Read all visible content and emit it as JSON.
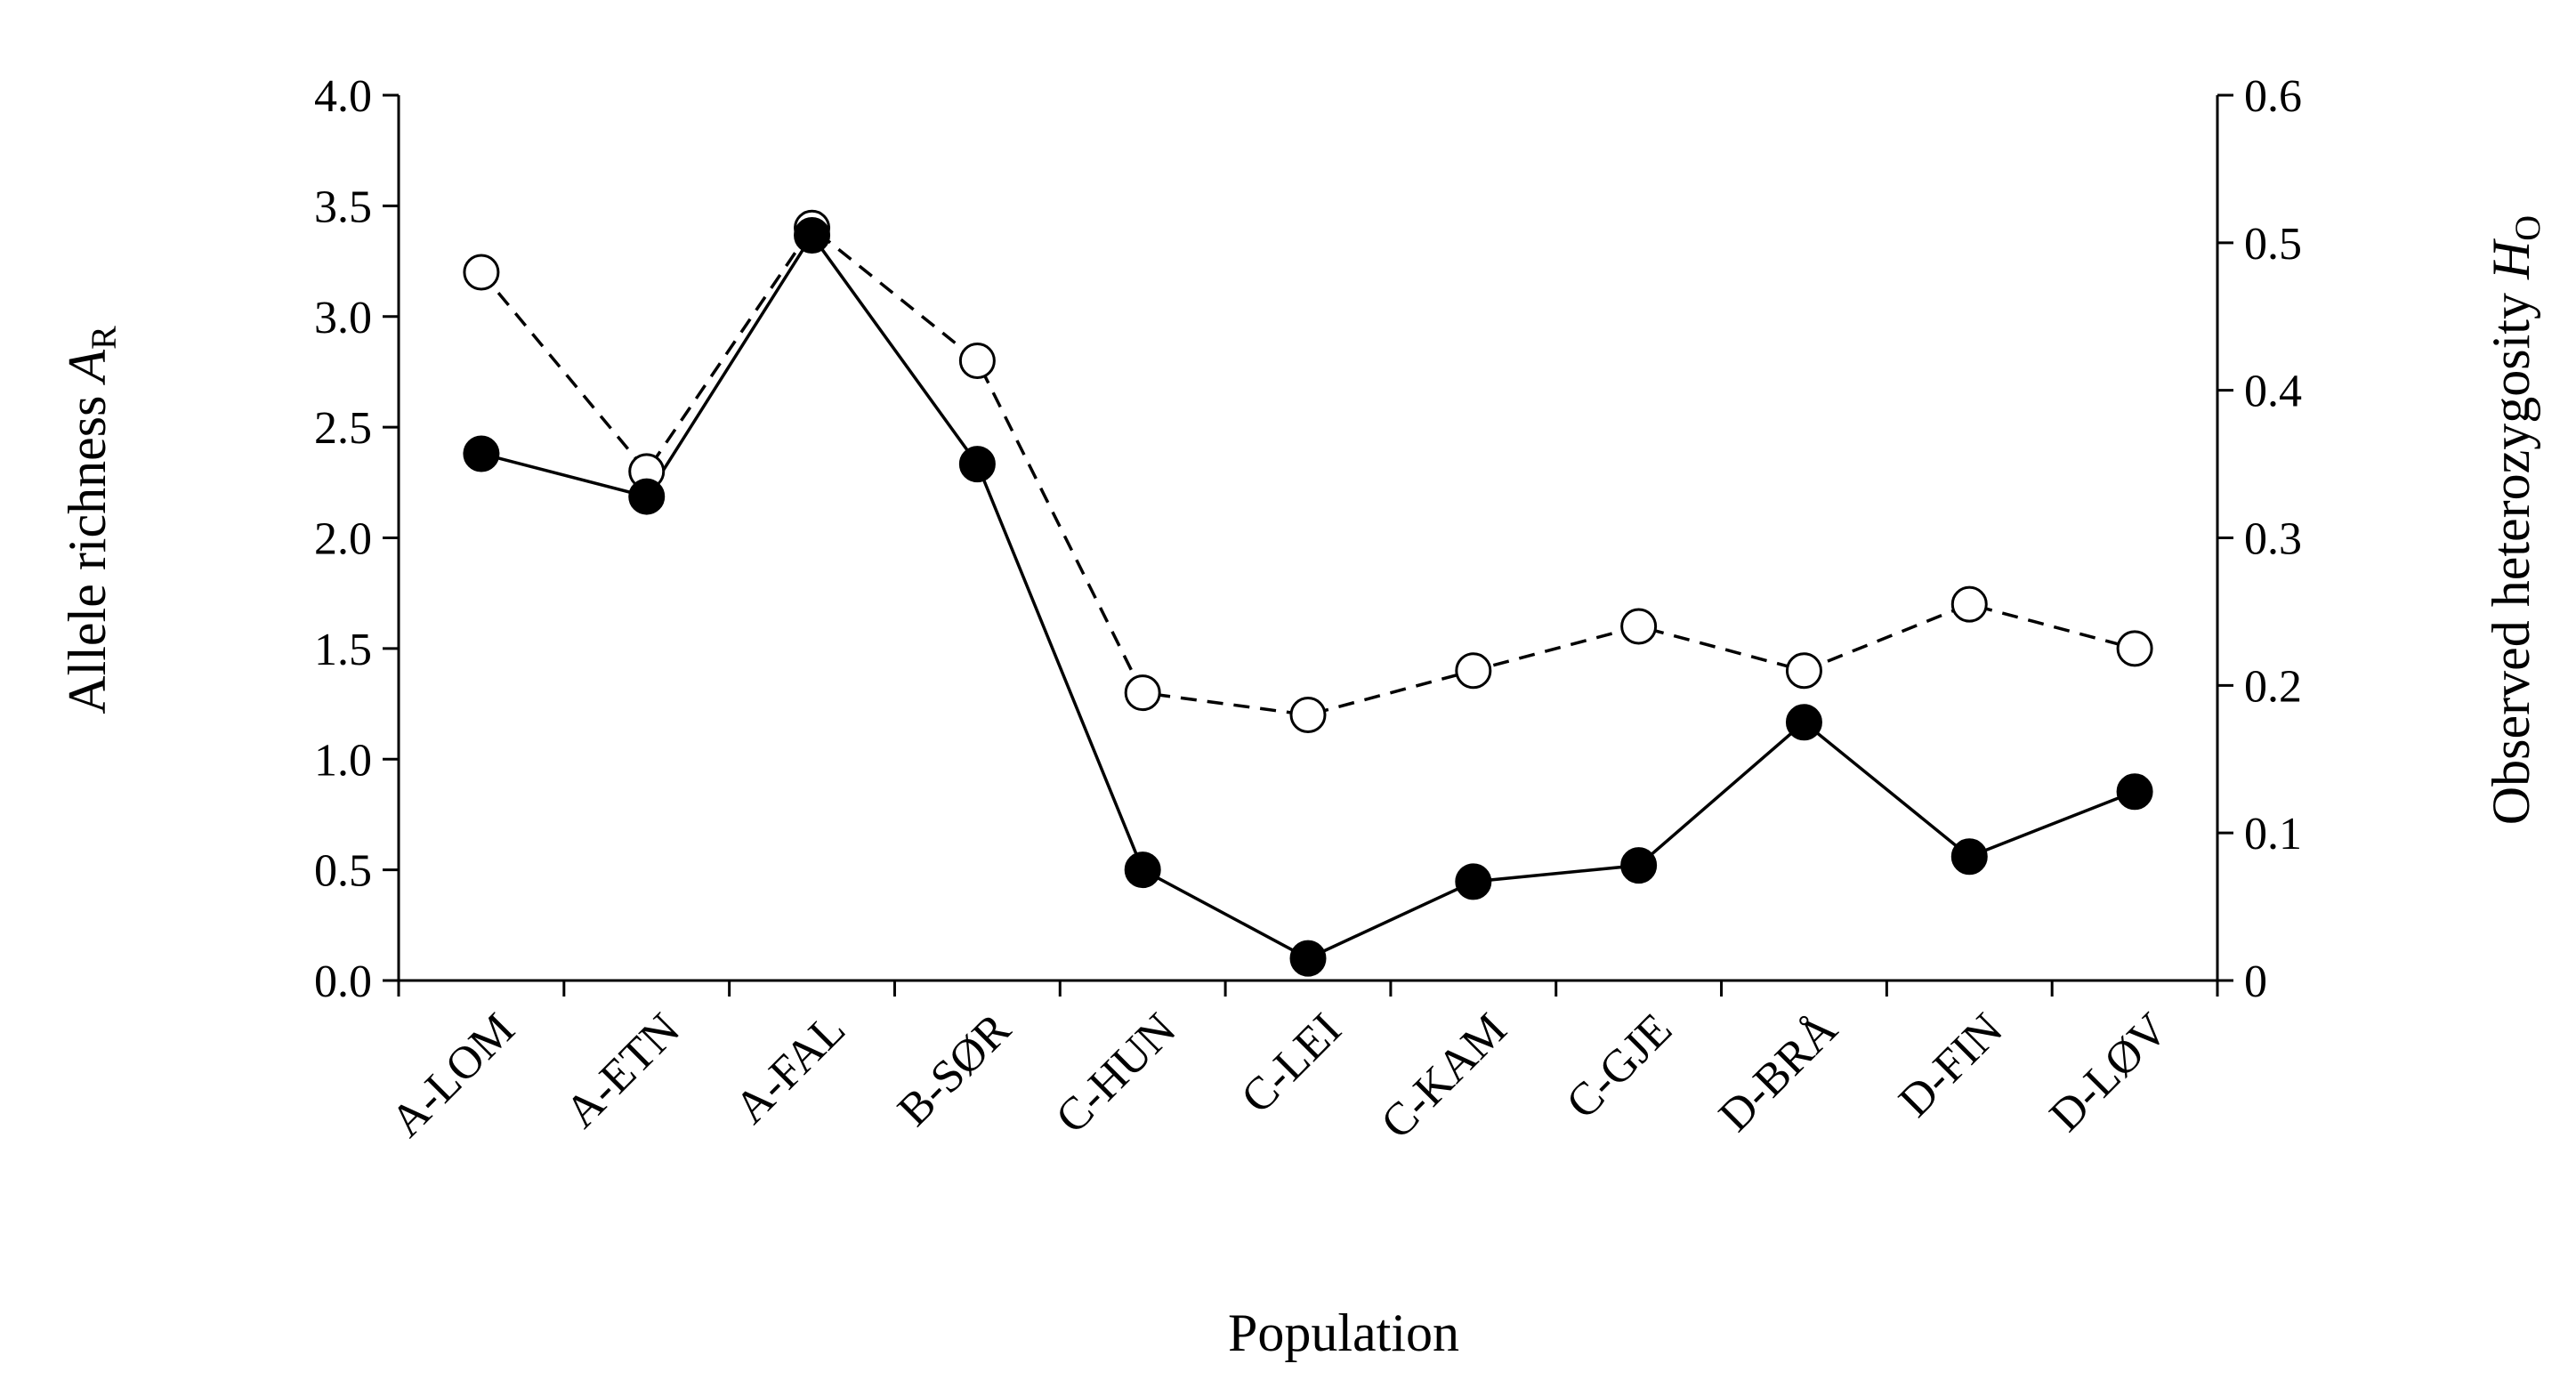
{
  "chart_data": {
    "type": "line",
    "title": "",
    "xlabel": "Population",
    "ylabel_left": "Allele richness",
    "ylabel_left_symbol": "A",
    "ylabel_left_subscript": "R",
    "ylabel_right": "Observed heterozygosity",
    "ylabel_right_symbol": "H",
    "ylabel_right_subscript": "O",
    "categories": [
      "A-LOM",
      "A-ETN",
      "A-FAL",
      "B-SØR",
      "C-HUN",
      "C-LEI",
      "C-KAM",
      "C-GJE",
      "D-BRÅ",
      "D-FIN",
      "D-LØV"
    ],
    "ylim_left": [
      0,
      4
    ],
    "ylim_right": [
      0,
      0.6
    ],
    "yticks_left": [
      "0.0",
      "0.5",
      "1.0",
      "1.5",
      "2.0",
      "2.5",
      "3.0",
      "3.5",
      "4.0"
    ],
    "yticks_right": [
      "0",
      "0.1",
      "0.2",
      "0.3",
      "0.4",
      "0.5",
      "0.6"
    ],
    "grid": false,
    "series": [
      {
        "name": "Allele richness",
        "axis": "left",
        "marker": "open-circle",
        "line": "dashed",
        "values": [
          3.2,
          2.3,
          3.4,
          2.8,
          1.3,
          1.2,
          1.4,
          1.6,
          1.4,
          1.7,
          1.5
        ]
      },
      {
        "name": "Observed heterozygosity",
        "axis": "right",
        "marker": "filled-circle",
        "line": "solid",
        "values": [
          0.357,
          0.328,
          0.505,
          0.35,
          0.075,
          0.015,
          0.067,
          0.078,
          0.175,
          0.084,
          0.128
        ]
      }
    ]
  }
}
